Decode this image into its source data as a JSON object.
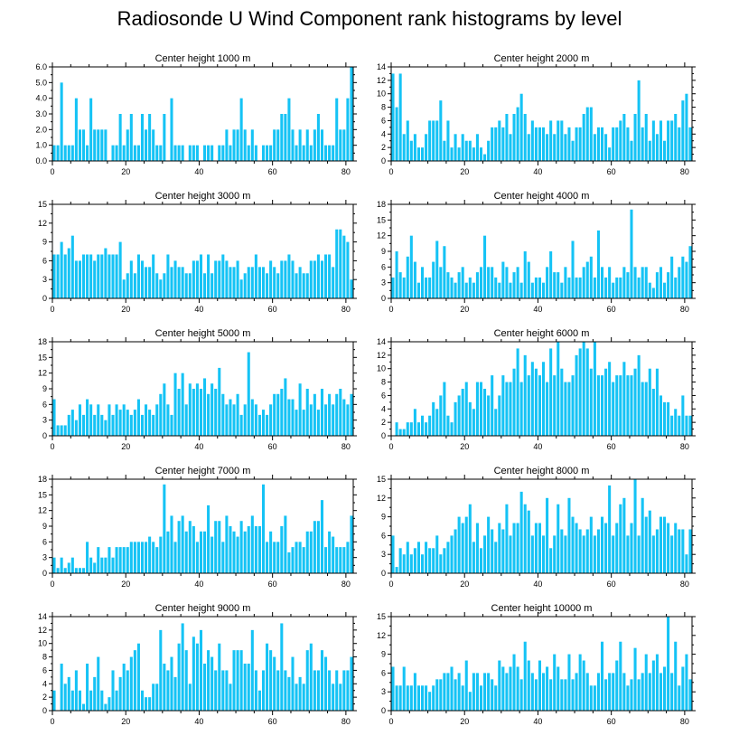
{
  "title": "Radiosonde U Wind Component rank histograms by level",
  "colors": {
    "bar": "#15c3f5",
    "axis": "#000000",
    "background": "#ffffff"
  },
  "chart_data": [
    {
      "type": "bar",
      "title": "Center height 1000 m",
      "xlim": [
        0,
        82
      ],
      "ylim": [
        0,
        6
      ],
      "xticks": [
        0,
        20,
        40,
        60,
        80
      ],
      "yticks": [
        0,
        1,
        2,
        3,
        4,
        5,
        6
      ],
      "ytick_labels": [
        "0.0",
        "1.0",
        "2.0",
        "3.0",
        "4.0",
        "5.0",
        "6.0"
      ],
      "values": [
        1,
        1,
        5,
        1,
        1,
        1,
        4,
        2,
        2,
        1,
        4,
        2,
        2,
        2,
        2,
        0,
        1,
        1,
        3,
        1,
        2,
        3,
        1,
        1,
        3,
        2,
        3,
        2,
        1,
        1,
        3,
        0,
        4,
        1,
        1,
        1,
        0,
        1,
        1,
        1,
        0,
        1,
        1,
        1,
        0,
        1,
        1,
        2,
        1,
        2,
        2,
        4,
        2,
        1,
        2,
        1,
        0,
        1,
        1,
        1,
        2,
        2,
        3,
        3,
        4,
        2,
        1,
        2,
        1,
        2,
        1,
        2,
        3,
        2,
        1,
        1,
        1,
        4,
        2,
        2,
        4,
        6
      ]
    },
    {
      "type": "bar",
      "title": "Center height 2000 m",
      "xlim": [
        0,
        82
      ],
      "ylim": [
        0,
        14
      ],
      "xticks": [
        0,
        20,
        40,
        60,
        80
      ],
      "yticks": [
        0,
        2,
        4,
        6,
        8,
        10,
        12,
        14
      ],
      "ytick_labels": [
        "0",
        "2",
        "4",
        "6",
        "8",
        "10",
        "12",
        "14"
      ],
      "values": [
        13,
        8,
        13,
        4,
        6,
        3,
        4,
        2,
        2,
        4,
        6,
        6,
        6,
        9,
        3,
        6,
        2,
        4,
        2,
        4,
        3,
        3,
        2,
        4,
        2,
        1,
        3,
        5,
        5,
        6,
        5,
        7,
        4,
        7,
        8,
        10,
        7,
        4,
        6,
        5,
        5,
        5,
        4,
        6,
        4,
        6,
        6,
        4,
        5,
        3,
        5,
        5,
        7,
        8,
        8,
        4,
        5,
        5,
        4,
        2,
        5,
        5,
        6,
        7,
        5,
        3,
        7,
        12,
        5,
        7,
        3,
        6,
        4,
        6,
        3,
        6,
        6,
        7,
        5,
        9,
        10,
        5,
        7
      ]
    },
    {
      "type": "bar",
      "title": "Center height 3000 m",
      "xlim": [
        0,
        82
      ],
      "ylim": [
        0,
        15
      ],
      "xticks": [
        0,
        20,
        40,
        60,
        80
      ],
      "yticks": [
        0,
        3,
        6,
        9,
        12,
        15
      ],
      "ytick_labels": [
        "0",
        "3",
        "6",
        "9",
        "12",
        "15"
      ],
      "values": [
        7,
        7,
        9,
        7,
        8,
        10,
        6,
        6,
        7,
        7,
        7,
        6,
        7,
        7,
        8,
        7,
        7,
        7,
        9,
        3,
        4,
        6,
        4,
        7,
        6,
        5,
        5,
        7,
        4,
        3,
        4,
        7,
        5,
        6,
        5,
        5,
        4,
        4,
        6,
        6,
        7,
        4,
        7,
        4,
        6,
        6,
        7,
        6,
        5,
        5,
        6,
        3,
        4,
        5,
        5,
        7,
        5,
        5,
        4,
        6,
        5,
        4,
        6,
        6,
        7,
        6,
        4,
        5,
        4,
        4,
        6,
        6,
        7,
        6,
        7,
        7,
        5,
        11,
        11,
        10,
        9,
        3,
        15
      ]
    },
    {
      "type": "bar",
      "title": "Center height 4000 m",
      "xlim": [
        0,
        82
      ],
      "ylim": [
        0,
        18
      ],
      "xticks": [
        0,
        20,
        40,
        60,
        80
      ],
      "yticks": [
        0,
        3,
        6,
        9,
        12,
        15,
        18
      ],
      "ytick_labels": [
        "0",
        "3",
        "6",
        "9",
        "12",
        "15",
        "18"
      ],
      "values": [
        4,
        9,
        5,
        4,
        8,
        12,
        7,
        3,
        6,
        4,
        4,
        7,
        11,
        6,
        10,
        5,
        4,
        3,
        5,
        6,
        3,
        4,
        3,
        5,
        6,
        12,
        6,
        6,
        4,
        3,
        7,
        6,
        3,
        5,
        6,
        3,
        9,
        7,
        3,
        4,
        4,
        3,
        6,
        9,
        5,
        5,
        3,
        6,
        4,
        11,
        4,
        4,
        6,
        7,
        8,
        4,
        13,
        6,
        4,
        6,
        3,
        4,
        4,
        6,
        5,
        17,
        6,
        4,
        6,
        6,
        3,
        2,
        5,
        6,
        3,
        5,
        8,
        4,
        6,
        8,
        7,
        10,
        9
      ]
    },
    {
      "type": "bar",
      "title": "Center height 5000 m",
      "xlim": [
        0,
        82
      ],
      "ylim": [
        0,
        18
      ],
      "xticks": [
        0,
        20,
        40,
        60,
        80
      ],
      "yticks": [
        0,
        3,
        6,
        9,
        12,
        15,
        18
      ],
      "ytick_labels": [
        "0",
        "3",
        "6",
        "9",
        "12",
        "15",
        "18"
      ],
      "values": [
        7,
        2,
        2,
        2,
        4,
        5,
        3,
        6,
        4,
        7,
        6,
        4,
        6,
        4,
        3,
        6,
        4,
        6,
        5,
        6,
        5,
        4,
        5,
        7,
        4,
        6,
        5,
        4,
        6,
        8,
        10,
        6,
        4,
        12,
        9,
        12,
        6,
        10,
        9,
        10,
        9,
        11,
        8,
        10,
        9,
        13,
        8,
        6,
        7,
        6,
        8,
        4,
        6,
        16,
        7,
        6,
        4,
        5,
        4,
        6,
        8,
        8,
        9,
        11,
        7,
        7,
        5,
        10,
        5,
        9,
        6,
        8,
        5,
        9,
        6,
        8,
        6,
        8,
        9,
        7,
        6,
        8,
        8
      ]
    },
    {
      "type": "bar",
      "title": "Center height 6000 m",
      "xlim": [
        0,
        82
      ],
      "ylim": [
        0,
        14
      ],
      "xticks": [
        0,
        20,
        40,
        60,
        80
      ],
      "yticks": [
        0,
        2,
        4,
        6,
        8,
        10,
        12,
        14
      ],
      "ytick_labels": [
        "0",
        "2",
        "4",
        "6",
        "8",
        "10",
        "12",
        "14"
      ],
      "values": [
        0,
        2,
        1,
        1,
        2,
        2,
        4,
        2,
        3,
        2,
        3,
        5,
        4,
        6,
        8,
        3,
        2,
        5,
        6,
        7,
        8,
        5,
        4,
        8,
        8,
        7,
        6,
        9,
        4,
        6,
        9,
        8,
        8,
        10,
        13,
        8,
        12,
        9,
        11,
        10,
        9,
        11,
        8,
        13,
        9,
        14,
        10,
        8,
        8,
        9,
        12,
        13,
        14,
        13,
        10,
        14,
        9,
        9,
        10,
        11,
        8,
        9,
        9,
        11,
        9,
        9,
        10,
        12,
        8,
        8,
        10,
        7,
        10,
        6,
        5,
        5,
        3,
        4,
        3,
        6,
        3,
        3,
        3
      ]
    },
    {
      "type": "bar",
      "title": "Center height 7000 m",
      "xlim": [
        0,
        82
      ],
      "ylim": [
        0,
        18
      ],
      "xticks": [
        0,
        20,
        40,
        60,
        80
      ],
      "yticks": [
        0,
        3,
        6,
        9,
        12,
        15,
        18
      ],
      "ytick_labels": [
        "0",
        "3",
        "6",
        "9",
        "12",
        "15",
        "18"
      ],
      "values": [
        3,
        1,
        3,
        1,
        2,
        3,
        1,
        1,
        1,
        6,
        3,
        2,
        5,
        3,
        3,
        5,
        3,
        5,
        5,
        5,
        5,
        6,
        6,
        6,
        6,
        6,
        7,
        6,
        5,
        7,
        17,
        8,
        11,
        6,
        10,
        11,
        8,
        10,
        9,
        6,
        8,
        8,
        13,
        7,
        10,
        10,
        6,
        11,
        9,
        8,
        7,
        10,
        8,
        9,
        11,
        9,
        9,
        17,
        6,
        8,
        6,
        6,
        9,
        11,
        4,
        5,
        6,
        6,
        5,
        8,
        8,
        10,
        10,
        14,
        5,
        8,
        7,
        5,
        5,
        5,
        6,
        11,
        4,
        5,
        3,
        5,
        2,
        4,
        4,
        2,
        5,
        5,
        5
      ]
    },
    {
      "type": "bar",
      "title": "Center height 8000 m",
      "xlim": [
        0,
        82
      ],
      "ylim": [
        0,
        15
      ],
      "xticks": [
        0,
        20,
        40,
        60,
        80
      ],
      "yticks": [
        0,
        3,
        6,
        9,
        12,
        15
      ],
      "ytick_labels": [
        "0",
        "3",
        "6",
        "9",
        "12",
        "15"
      ],
      "values": [
        6,
        1,
        4,
        3,
        5,
        3,
        4,
        5,
        3,
        5,
        4,
        4,
        6,
        3,
        4,
        5,
        6,
        7,
        9,
        8,
        9,
        11,
        5,
        8,
        4,
        6,
        9,
        7,
        5,
        8,
        7,
        11,
        6,
        8,
        8,
        13,
        11,
        10,
        6,
        8,
        8,
        6,
        12,
        4,
        6,
        11,
        7,
        6,
        12,
        9,
        8,
        7,
        6,
        7,
        9,
        6,
        7,
        9,
        8,
        14,
        6,
        8,
        11,
        12,
        6,
        8,
        15,
        6,
        12,
        9,
        10,
        6,
        7,
        9,
        9,
        8,
        6,
        8,
        7,
        7,
        3,
        7,
        13,
        3,
        4,
        3
      ]
    },
    {
      "type": "bar",
      "title": "Center height 9000 m",
      "xlim": [
        0,
        82
      ],
      "ylim": [
        0,
        14
      ],
      "xticks": [
        0,
        20,
        40,
        60,
        80
      ],
      "yticks": [
        0,
        2,
        4,
        6,
        8,
        10,
        12,
        14
      ],
      "ytick_labels": [
        "0",
        "2",
        "4",
        "6",
        "8",
        "10",
        "12",
        "14"
      ],
      "values": [
        3,
        0,
        7,
        4,
        5,
        3,
        6,
        3,
        1,
        7,
        3,
        5,
        8,
        3,
        1,
        2,
        6,
        3,
        5,
        7,
        6,
        8,
        9,
        10,
        3,
        2,
        2,
        4,
        4,
        12,
        7,
        6,
        8,
        5,
        10,
        13,
        9,
        4,
        11,
        10,
        12,
        7,
        9,
        8,
        6,
        10,
        6,
        6,
        4,
        9,
        9,
        9,
        7,
        7,
        12,
        6,
        3,
        6,
        10,
        9,
        8,
        6,
        13,
        6,
        5,
        8,
        4,
        5,
        4,
        9,
        10,
        6,
        6,
        9,
        8,
        6,
        4,
        6,
        4,
        6,
        6,
        8,
        6,
        9,
        4,
        7,
        11,
        8,
        8
      ]
    },
    {
      "type": "bar",
      "title": "Center height 10000 m",
      "xlim": [
        0,
        82
      ],
      "ylim": [
        0,
        15
      ],
      "xticks": [
        0,
        20,
        40,
        60,
        80
      ],
      "yticks": [
        0,
        3,
        6,
        9,
        12,
        15
      ],
      "ytick_labels": [
        "0",
        "3",
        "6",
        "9",
        "12",
        "15"
      ],
      "values": [
        7,
        4,
        4,
        7,
        4,
        4,
        6,
        4,
        4,
        4,
        3,
        4,
        5,
        5,
        6,
        6,
        7,
        5,
        6,
        4,
        8,
        3,
        6,
        6,
        4,
        6,
        6,
        5,
        4,
        8,
        7,
        6,
        7,
        9,
        7,
        5,
        11,
        8,
        6,
        5,
        8,
        6,
        7,
        5,
        9,
        7,
        5,
        5,
        9,
        5,
        6,
        9,
        8,
        6,
        4,
        4,
        6,
        11,
        5,
        6,
        6,
        8,
        11,
        6,
        4,
        5,
        10,
        5,
        6,
        9,
        6,
        8,
        9,
        6,
        7,
        15,
        6,
        11,
        4,
        7,
        9,
        5,
        5,
        11,
        11,
        12
      ]
    }
  ]
}
